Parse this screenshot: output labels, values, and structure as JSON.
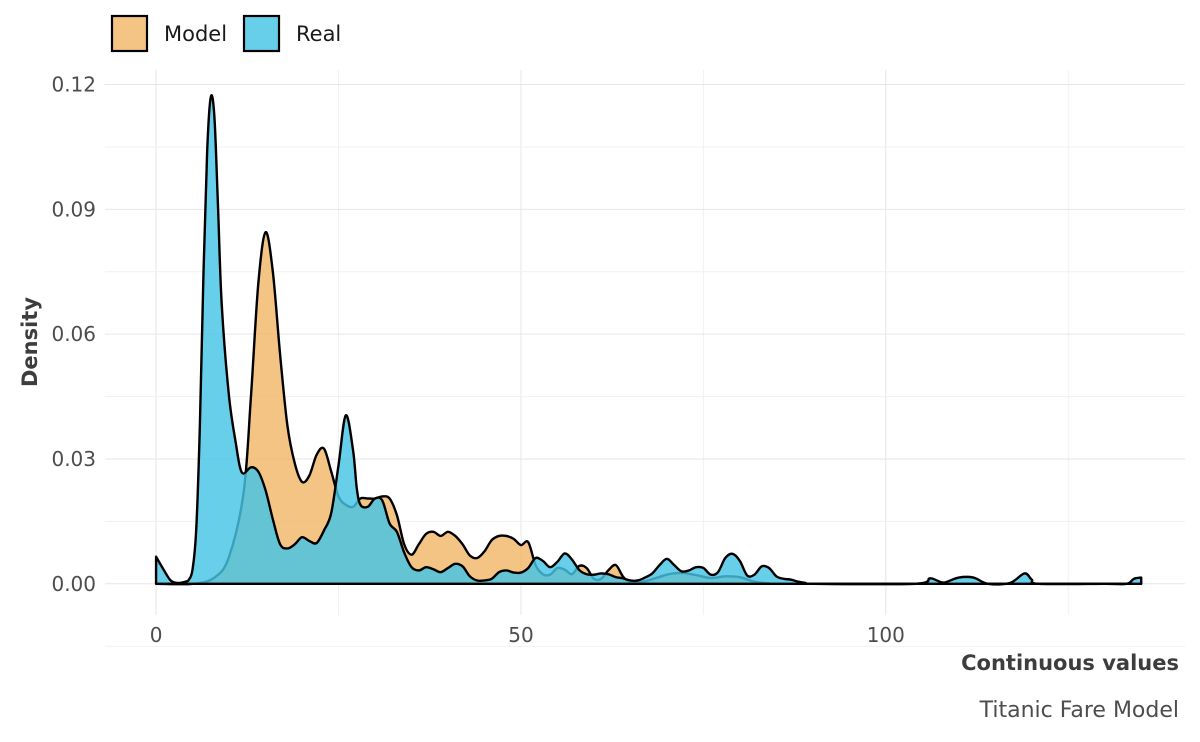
{
  "chart_data": {
    "type": "area",
    "subtype": "density",
    "caption": "Titanic Fare Model",
    "xlabel": "Continuous values",
    "ylabel": "Density",
    "xlim": [
      -7,
      141
    ],
    "ylim": [
      -0.0075,
      0.1235
    ],
    "x_ticks": [
      0,
      50,
      100
    ],
    "y_ticks": [
      0.0,
      0.03,
      0.06,
      0.09,
      0.12
    ],
    "y_tick_labels": [
      "0.00",
      "0.03",
      "0.06",
      "0.09",
      "0.12"
    ],
    "grid": true,
    "legend_position": "top-left",
    "series": [
      {
        "name": "Model",
        "color": "#f0b360",
        "opacity": 0.78,
        "points": [
          [
            0,
            0.0
          ],
          [
            5,
            0.0
          ],
          [
            8,
            0.0015
          ],
          [
            10,
            0.0065
          ],
          [
            12,
            0.022
          ],
          [
            13,
            0.045
          ],
          [
            14,
            0.072
          ],
          [
            15,
            0.0845
          ],
          [
            16,
            0.075
          ],
          [
            17,
            0.055
          ],
          [
            18,
            0.038
          ],
          [
            19,
            0.029
          ],
          [
            20,
            0.0245
          ],
          [
            21,
            0.026
          ],
          [
            22,
            0.031
          ],
          [
            23,
            0.0325
          ],
          [
            24,
            0.027
          ],
          [
            25,
            0.021
          ],
          [
            26,
            0.019
          ],
          [
            27,
            0.0185
          ],
          [
            28,
            0.0205
          ],
          [
            29,
            0.0205
          ],
          [
            30,
            0.0205
          ],
          [
            31,
            0.021
          ],
          [
            32,
            0.0205
          ],
          [
            33,
            0.0165
          ],
          [
            34,
            0.0095
          ],
          [
            35,
            0.007
          ],
          [
            36,
            0.0095
          ],
          [
            37,
            0.012
          ],
          [
            38,
            0.0125
          ],
          [
            39,
            0.0115
          ],
          [
            40,
            0.0125
          ],
          [
            41,
            0.0115
          ],
          [
            42,
            0.0095
          ],
          [
            43,
            0.0068
          ],
          [
            44,
            0.0062
          ],
          [
            45,
            0.0078
          ],
          [
            46,
            0.0105
          ],
          [
            47,
            0.0115
          ],
          [
            48,
            0.0115
          ],
          [
            49,
            0.0108
          ],
          [
            50,
            0.0093
          ],
          [
            51,
            0.01
          ],
          [
            52,
            0.0045
          ],
          [
            53,
            0.0023
          ],
          [
            54,
            0.0022
          ],
          [
            55,
            0.0038
          ],
          [
            56,
            0.0034
          ],
          [
            57,
            0.0023
          ],
          [
            58,
            0.0043
          ],
          [
            59,
            0.0038
          ],
          [
            60,
            0.0012
          ],
          [
            61,
            0.0012
          ],
          [
            62,
            0.0033
          ],
          [
            63,
            0.0045
          ],
          [
            64,
            0.0017
          ],
          [
            65,
            0.0005
          ],
          [
            67,
            0.0006
          ],
          [
            70,
            0.0022
          ],
          [
            72,
            0.0026
          ],
          [
            74,
            0.0021
          ],
          [
            76,
            0.0014
          ],
          [
            78,
            0.0018
          ],
          [
            80,
            0.0016
          ],
          [
            82,
            0.0005
          ],
          [
            84,
            0.0001
          ],
          [
            86,
            0.0
          ],
          [
            135,
            0.0
          ]
        ]
      },
      {
        "name": "Real",
        "color": "#45c5e5",
        "opacity": 0.82,
        "points": [
          [
            0,
            0.0065
          ],
          [
            1,
            0.0035
          ],
          [
            2,
            0.0008
          ],
          [
            3,
            0.0002
          ],
          [
            4,
            0.0005
          ],
          [
            4.5,
            0.001
          ],
          [
            5,
            0.0035
          ],
          [
            5.5,
            0.013
          ],
          [
            6,
            0.038
          ],
          [
            6.5,
            0.075
          ],
          [
            7,
            0.104
          ],
          [
            7.5,
            0.117
          ],
          [
            8,
            0.112
          ],
          [
            8.5,
            0.09
          ],
          [
            9,
            0.067
          ],
          [
            10,
            0.045
          ],
          [
            11,
            0.033
          ],
          [
            11.5,
            0.028
          ],
          [
            12,
            0.0265
          ],
          [
            13,
            0.028
          ],
          [
            14,
            0.027
          ],
          [
            15,
            0.0225
          ],
          [
            16,
            0.0155
          ],
          [
            17,
            0.0095
          ],
          [
            18,
            0.0085
          ],
          [
            19,
            0.0095
          ],
          [
            20,
            0.0112
          ],
          [
            21,
            0.0103
          ],
          [
            22,
            0.0098
          ],
          [
            23,
            0.0128
          ],
          [
            24,
            0.017
          ],
          [
            25,
            0.0285
          ],
          [
            26,
            0.0405
          ],
          [
            27,
            0.032
          ],
          [
            27.5,
            0.023
          ],
          [
            28,
            0.019
          ],
          [
            29,
            0.0185
          ],
          [
            30,
            0.0205
          ],
          [
            31,
            0.02
          ],
          [
            32,
            0.0145
          ],
          [
            33,
            0.0125
          ],
          [
            34,
            0.0075
          ],
          [
            35,
            0.004
          ],
          [
            36,
            0.0032
          ],
          [
            37,
            0.004
          ],
          [
            38,
            0.0035
          ],
          [
            39,
            0.0028
          ],
          [
            40,
            0.0038
          ],
          [
            41,
            0.0048
          ],
          [
            42,
            0.0042
          ],
          [
            43,
            0.0018
          ],
          [
            44,
            0.0008
          ],
          [
            45,
            0.0008
          ],
          [
            46,
            0.0012
          ],
          [
            47,
            0.0028
          ],
          [
            48,
            0.0032
          ],
          [
            49,
            0.0027
          ],
          [
            50,
            0.0027
          ],
          [
            51,
            0.0038
          ],
          [
            52,
            0.0062
          ],
          [
            53,
            0.0055
          ],
          [
            54,
            0.004
          ],
          [
            55,
            0.0053
          ],
          [
            56,
            0.0073
          ],
          [
            57,
            0.0058
          ],
          [
            58,
            0.0033
          ],
          [
            59,
            0.0023
          ],
          [
            60,
            0.0022
          ],
          [
            61,
            0.0025
          ],
          [
            62,
            0.0023
          ],
          [
            63,
            0.0016
          ],
          [
            64,
            0.0013
          ],
          [
            65,
            0.0008
          ],
          [
            66,
            0.0008
          ],
          [
            67,
            0.0015
          ],
          [
            68,
            0.0025
          ],
          [
            69,
            0.0045
          ],
          [
            70,
            0.006
          ],
          [
            71,
            0.0045
          ],
          [
            72,
            0.003
          ],
          [
            73,
            0.0032
          ],
          [
            74,
            0.004
          ],
          [
            75,
            0.0038
          ],
          [
            76,
            0.0022
          ],
          [
            77,
            0.0028
          ],
          [
            78,
            0.0062
          ],
          [
            79,
            0.0072
          ],
          [
            80,
            0.0055
          ],
          [
            81,
            0.002
          ],
          [
            82,
            0.0022
          ],
          [
            83,
            0.0042
          ],
          [
            84,
            0.0038
          ],
          [
            85,
            0.0018
          ],
          [
            86,
            0.0012
          ],
          [
            87,
            0.001
          ],
          [
            88,
            0.0005
          ],
          [
            89,
            0.0002
          ],
          [
            90,
            0.0
          ],
          [
            104,
            0.0
          ],
          [
            106,
            0.0013
          ],
          [
            107,
            0.0008
          ],
          [
            108,
            0.0003
          ],
          [
            110,
            0.0015
          ],
          [
            112,
            0.0015
          ],
          [
            114,
            0.0
          ],
          [
            117,
            0.0002
          ],
          [
            119,
            0.0025
          ],
          [
            120,
            0.001
          ],
          [
            121,
            0.0
          ],
          [
            130,
            0.0
          ],
          [
            133,
            0.0
          ],
          [
            134,
            0.0012
          ],
          [
            135,
            0.0015
          ]
        ]
      }
    ]
  }
}
